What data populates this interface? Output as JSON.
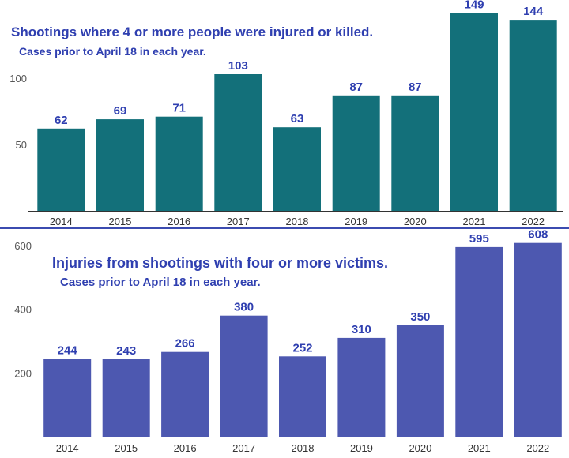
{
  "colors": {
    "top_bar": "#13707a",
    "bottom_bar": "#4d58b0",
    "label_text": "#2f3fb0",
    "divider": "#3b4bb0"
  },
  "chart_data": [
    {
      "type": "bar",
      "title": "Shootings where 4 or more people were injured or killed.",
      "subtitle": "Cases prior to April 18 in each year.",
      "categories": [
        "2014",
        "2015",
        "2016",
        "2017",
        "2018",
        "2019",
        "2020",
        "2021",
        "2022"
      ],
      "values": [
        62,
        69,
        71,
        103,
        63,
        87,
        87,
        149,
        144
      ],
      "data_labels": [
        "62",
        "69",
        "71",
        "103",
        "63",
        "87",
        "87",
        "149",
        "144"
      ],
      "y_ticks": [
        50,
        100
      ],
      "y_tick_labels": [
        "50",
        "100"
      ],
      "ylim": [
        0,
        160
      ],
      "grid": false
    },
    {
      "type": "bar",
      "title": "Injuries from shootings with four or more victims.",
      "subtitle": "Cases prior to April 18 in each year.",
      "categories": [
        "2014",
        "2015",
        "2016",
        "2017",
        "2018",
        "2019",
        "2020",
        "2021",
        "2022"
      ],
      "values": [
        244,
        243,
        266,
        380,
        252,
        310,
        350,
        595,
        608
      ],
      "data_labels": [
        "244",
        "243",
        "266",
        "380",
        "252",
        "310",
        "350",
        "595",
        "608"
      ],
      "y_ticks": [
        200,
        400,
        600
      ],
      "y_tick_labels": [
        "200",
        "400",
        "600"
      ],
      "ylim": [
        0,
        640
      ],
      "grid": false
    }
  ]
}
